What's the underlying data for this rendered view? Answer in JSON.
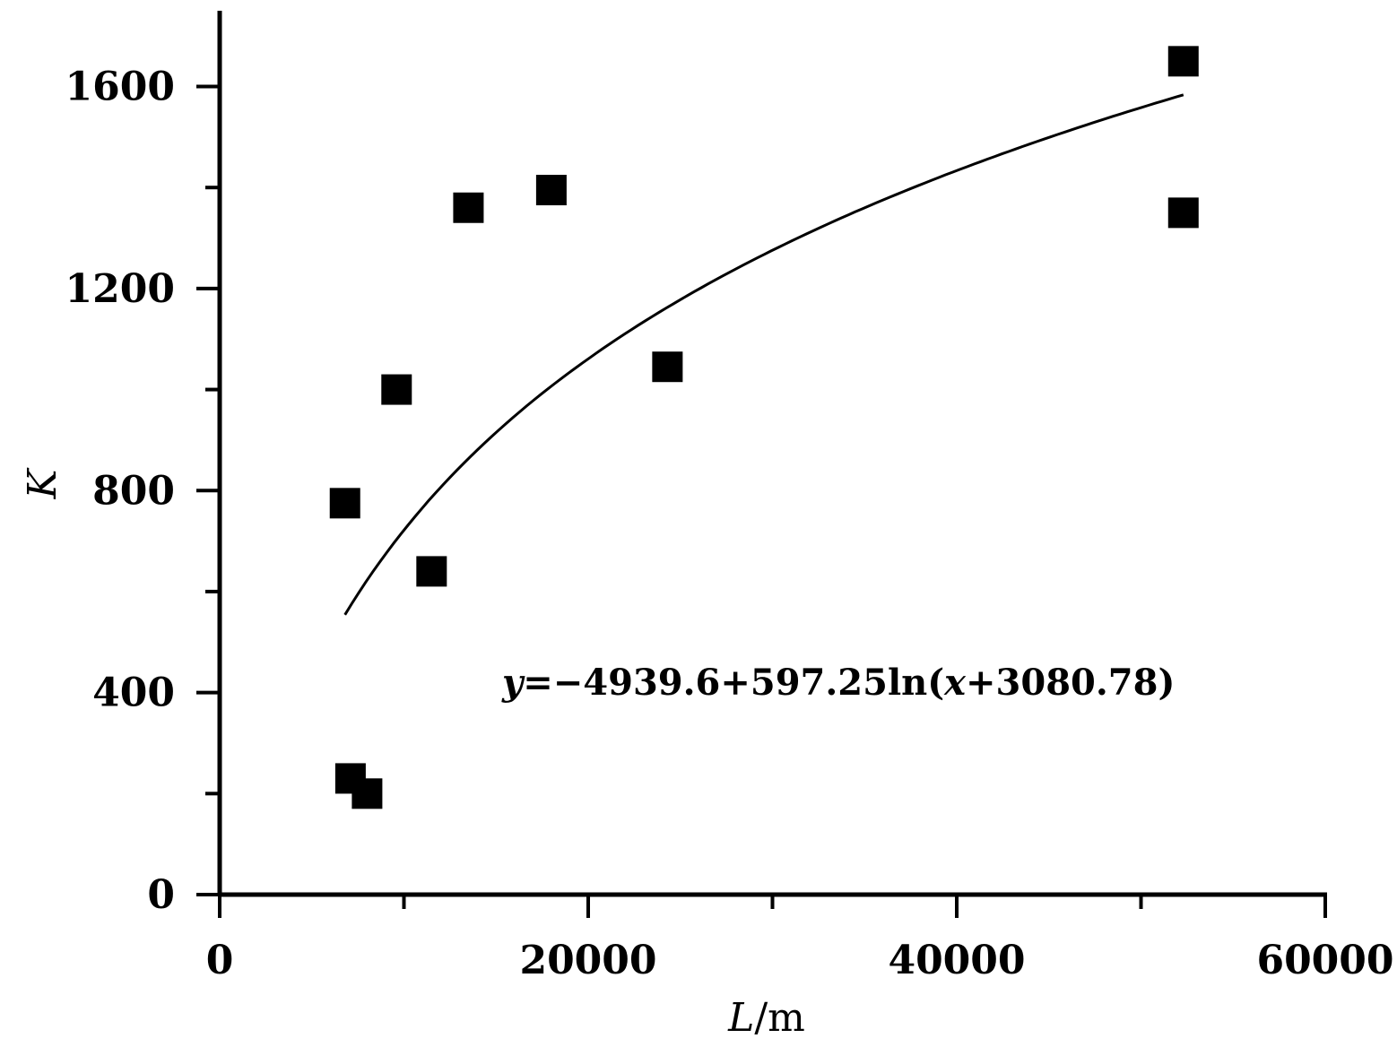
{
  "chart_data": {
    "type": "scatter",
    "title": "",
    "xlabel": {
      "var": "L",
      "unit": "/m"
    },
    "ylabel": "K",
    "xlim": [
      0,
      60000
    ],
    "ylim": [
      0,
      1750
    ],
    "x_ticks_major": [
      0,
      20000,
      40000,
      60000
    ],
    "x_ticks_minor": [
      10000,
      30000,
      50000
    ],
    "y_ticks_major": [
      0,
      400,
      800,
      1200,
      1600
    ],
    "y_ticks_minor": [
      200,
      600,
      1000,
      1400
    ],
    "grid": false,
    "series": [
      {
        "marker": "square",
        "color": "#000000",
        "points": [
          {
            "x": 6800,
            "y": 775
          },
          {
            "x": 7100,
            "y": 230
          },
          {
            "x": 8000,
            "y": 200
          },
          {
            "x": 9600,
            "y": 1000
          },
          {
            "x": 11500,
            "y": 640
          },
          {
            "x": 13500,
            "y": 1360
          },
          {
            "x": 18000,
            "y": 1395
          },
          {
            "x": 24300,
            "y": 1045
          },
          {
            "x": 52300,
            "y": 1650
          },
          {
            "x": 52300,
            "y": 1350
          }
        ]
      }
    ],
    "fit": {
      "a": -4939.6,
      "b": 597.25,
      "c": 3080.78,
      "x_range": [
        6800,
        52300
      ],
      "equation_parts": {
        "y": "y",
        "rest1": "=−4939.6+597.25ln(",
        "x": "x",
        "rest2": "+3080.78)"
      }
    }
  }
}
